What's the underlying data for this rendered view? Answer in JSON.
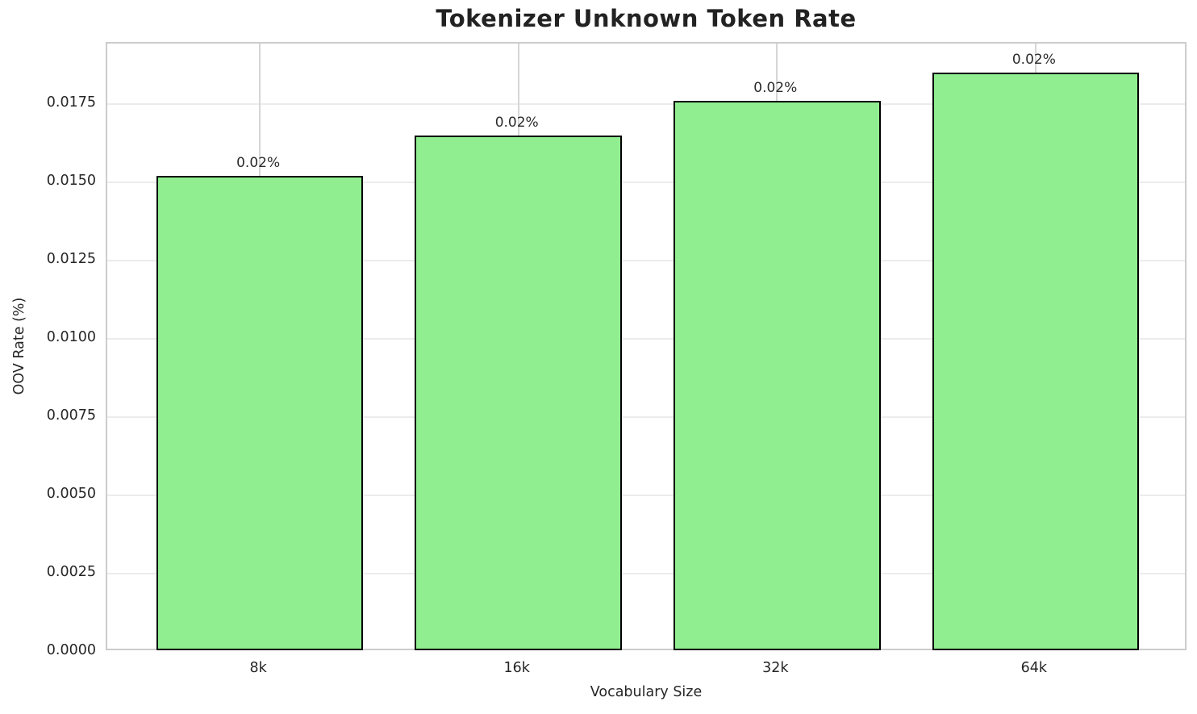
{
  "page": {
    "background_color": "#ffffff"
  },
  "chart_data": {
    "type": "bar",
    "title": "Tokenizer Unknown Token Rate",
    "xlabel": "Vocabulary Size",
    "ylabel": "OOV Rate (%)",
    "categories": [
      "8k",
      "16k",
      "32k",
      "64k"
    ],
    "values": [
      0.0152,
      0.0165,
      0.0176,
      0.0185
    ],
    "bar_labels": [
      "0.02%",
      "0.02%",
      "0.02%",
      "0.02%"
    ],
    "ylim": [
      0,
      0.019425
    ],
    "yticks": [
      0.0,
      0.0025,
      0.005,
      0.0075,
      0.01,
      0.0125,
      0.015,
      0.0175
    ],
    "ytick_labels": [
      "0.0000",
      "0.0025",
      "0.0050",
      "0.0075",
      "0.0100",
      "0.0125",
      "0.0150",
      "0.0175"
    ],
    "grid": true,
    "legend": "none",
    "bar_width_fraction": 0.8,
    "bar_color": "#90EE90",
    "bar_edge_color": "#000000",
    "title_color": "#222222",
    "tick_label_color": "#262626"
  }
}
